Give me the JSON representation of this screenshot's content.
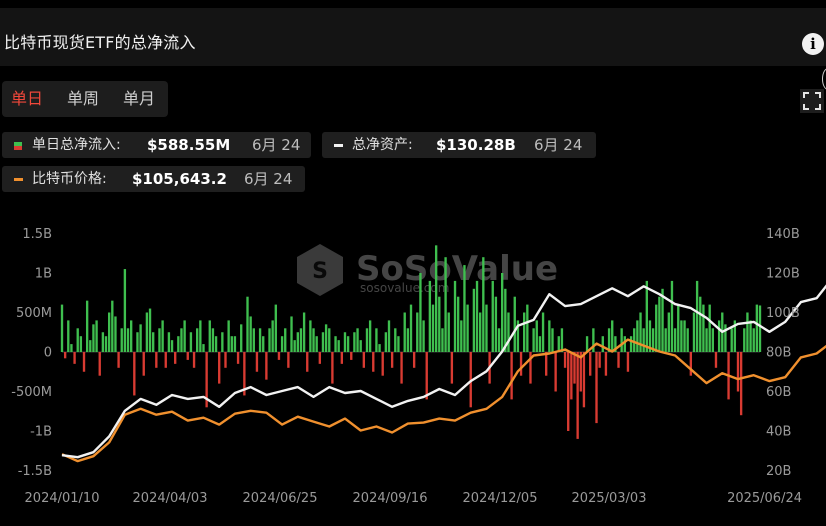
{
  "header": {
    "title": "比特币现货ETF的总净流入",
    "info_icon": "info-icon"
  },
  "tabs": [
    {
      "label": "单日",
      "active": true
    },
    {
      "label": "单周",
      "active": false
    },
    {
      "label": "单月",
      "active": false
    }
  ],
  "toolbar": {
    "expand_icon": "fullscreen-expand-icon"
  },
  "legend": {
    "daily_flow": {
      "label": "单日总净流入:",
      "value": "$588.55M",
      "date": "6月 24"
    },
    "total_assets": {
      "label": "总净资产:",
      "value": "$130.28B",
      "date": "6月 24"
    },
    "btc_price": {
      "label": "比特币价格:",
      "value": "$105,643.2",
      "date": "6月 24"
    }
  },
  "watermark": {
    "brand": "SoSoValue",
    "url": "sosovalue.com"
  },
  "colors": {
    "inflow": "#3fbf4f",
    "outflow": "#d93b32",
    "total_assets_line": "#f2f2f2",
    "price_line": "#f0902e",
    "accent_tab": "#f0473a"
  },
  "chart_data": {
    "type": "bar",
    "x_ticks": [
      "2024/01/10",
      "2024/04/03",
      "2024/06/25",
      "2024/09/16",
      "2024/12/05",
      "2025/03/03",
      "2025/06/24"
    ],
    "left_axis": {
      "ticks": [
        "1.5B",
        "1B",
        "500M",
        "0",
        "-500M",
        "-1B",
        "-1.5B"
      ],
      "ylim": [
        -1500000000,
        1500000000
      ]
    },
    "right_axis": {
      "ticks": [
        "140B",
        "120B",
        "100B",
        "80B",
        "60B",
        "40B",
        "20B"
      ],
      "ylim": [
        20000000000,
        140000000000
      ]
    },
    "series": [
      {
        "name": "单日总净流入",
        "type": "bar",
        "unit": "USD",
        "values": [
          600,
          -80,
          400,
          100,
          -150,
          300,
          200,
          -250,
          650,
          150,
          350,
          400,
          -300,
          250,
          200,
          500,
          650,
          450,
          -200,
          300,
          1050,
          300,
          400,
          -550,
          250,
          350,
          -300,
          500,
          550,
          250,
          -200,
          300,
          400,
          -200,
          250,
          150,
          -150,
          200,
          300,
          400,
          -100,
          250,
          -200,
          300,
          400,
          100,
          -700,
          400,
          300,
          200,
          -400,
          250,
          -200,
          400,
          200,
          200,
          -150,
          350,
          -550,
          700,
          450,
          300,
          -250,
          300,
          200,
          -350,
          300,
          400,
          600,
          -100,
          200,
          300,
          -200,
          450,
          150,
          250,
          300,
          500,
          -250,
          400,
          300,
          200,
          -150,
          250,
          350,
          300,
          -400,
          200,
          150,
          -150,
          250,
          200,
          -100,
          250,
          300,
          150,
          -200,
          300,
          400,
          -250,
          300,
          100,
          -300,
          250,
          400,
          -200,
          300,
          200,
          -400,
          500,
          300,
          600,
          -200,
          500,
          1000,
          400,
          -600,
          900,
          600,
          1350,
          700,
          300,
          1200,
          500,
          -400,
          900,
          700,
          400,
          1100,
          600,
          -700,
          800,
          900,
          500,
          1200,
          600,
          -400,
          900,
          700,
          300,
          1000,
          800,
          500,
          -600,
          700,
          400,
          -300,
          500,
          600,
          -400,
          300,
          400,
          200,
          500,
          -300,
          400,
          300,
          -500,
          200,
          300,
          -200,
          -1000,
          -600,
          -400,
          -1100,
          -500,
          -700,
          200,
          -300,
          300,
          -900,
          -200,
          200,
          -300,
          300,
          400,
          200,
          -200,
          300,
          200,
          -250,
          200,
          300,
          400,
          500,
          300,
          900,
          400,
          300,
          600,
          700,
          800,
          300,
          500,
          900,
          300,
          600,
          400,
          400,
          300,
          -300,
          500,
          900,
          700,
          600,
          300,
          600,
          300,
          -200,
          400,
          500,
          350,
          -600,
          300,
          400,
          -500,
          -800,
          300,
          500,
          400,
          300,
          600,
          589
        ]
      },
      {
        "name": "总净资产",
        "type": "line",
        "unit": "USD",
        "points": [
          [
            0,
            27.5
          ],
          [
            5,
            26.5
          ],
          [
            10,
            29
          ],
          [
            15,
            37
          ],
          [
            20,
            50
          ],
          [
            25,
            56
          ],
          [
            30,
            53
          ],
          [
            35,
            58
          ],
          [
            40,
            56
          ],
          [
            45,
            57
          ],
          [
            50,
            52
          ],
          [
            55,
            59
          ],
          [
            60,
            62
          ],
          [
            65,
            58
          ],
          [
            70,
            60
          ],
          [
            75,
            62
          ],
          [
            80,
            57
          ],
          [
            85,
            62
          ],
          [
            90,
            59
          ],
          [
            95,
            60
          ],
          [
            100,
            56
          ],
          [
            105,
            52
          ],
          [
            110,
            55
          ],
          [
            115,
            57
          ],
          [
            120,
            61
          ],
          [
            125,
            58
          ],
          [
            130,
            65
          ],
          [
            135,
            70
          ],
          [
            140,
            80
          ],
          [
            145,
            93
          ],
          [
            150,
            96
          ],
          [
            155,
            109
          ],
          [
            160,
            103
          ],
          [
            165,
            104
          ],
          [
            170,
            108
          ],
          [
            175,
            112
          ],
          [
            180,
            108
          ],
          [
            185,
            113
          ],
          [
            190,
            109
          ],
          [
            195,
            104
          ],
          [
            200,
            102
          ],
          [
            205,
            97
          ],
          [
            210,
            90
          ],
          [
            215,
            94
          ],
          [
            220,
            95
          ],
          [
            225,
            90
          ],
          [
            230,
            95
          ],
          [
            235,
            105
          ],
          [
            240,
            107
          ],
          [
            245,
            117
          ],
          [
            250,
            115
          ],
          [
            255,
            125
          ],
          [
            260,
            128
          ],
          [
            265,
            127
          ],
          [
            270,
            124
          ],
          [
            275,
            129
          ],
          [
            280,
            130.28
          ]
        ]
      },
      {
        "name": "比特币价格",
        "type": "line",
        "unit": "USD",
        "points": [
          [
            0,
            46000
          ],
          [
            5,
            42500
          ],
          [
            10,
            45000
          ],
          [
            15,
            52000
          ],
          [
            20,
            66000
          ],
          [
            25,
            69000
          ],
          [
            30,
            66000
          ],
          [
            35,
            67500
          ],
          [
            40,
            63000
          ],
          [
            45,
            64500
          ],
          [
            50,
            61000
          ],
          [
            55,
            66500
          ],
          [
            60,
            68000
          ],
          [
            65,
            67000
          ],
          [
            70,
            61000
          ],
          [
            75,
            65000
          ],
          [
            80,
            62500
          ],
          [
            85,
            60000
          ],
          [
            90,
            64000
          ],
          [
            95,
            58000
          ],
          [
            100,
            60000
          ],
          [
            105,
            57000
          ],
          [
            110,
            61500
          ],
          [
            115,
            62000
          ],
          [
            120,
            64000
          ],
          [
            125,
            63000
          ],
          [
            130,
            67000
          ],
          [
            135,
            69000
          ],
          [
            140,
            75000
          ],
          [
            145,
            88000
          ],
          [
            150,
            96000
          ],
          [
            155,
            97000
          ],
          [
            160,
            99000
          ],
          [
            165,
            95000
          ],
          [
            170,
            102000
          ],
          [
            175,
            98000
          ],
          [
            180,
            104000
          ],
          [
            185,
            101000
          ],
          [
            190,
            98000
          ],
          [
            195,
            96000
          ],
          [
            200,
            89000
          ],
          [
            205,
            82000
          ],
          [
            210,
            87000
          ],
          [
            215,
            84000
          ],
          [
            220,
            86000
          ],
          [
            225,
            83000
          ],
          [
            230,
            85000
          ],
          [
            235,
            95000
          ],
          [
            240,
            97000
          ],
          [
            245,
            103000
          ],
          [
            250,
            104000
          ],
          [
            255,
            108000
          ],
          [
            260,
            105000
          ],
          [
            265,
            108000
          ],
          [
            270,
            104000
          ],
          [
            275,
            101000
          ],
          [
            280,
            105643.2
          ]
        ]
      }
    ]
  }
}
